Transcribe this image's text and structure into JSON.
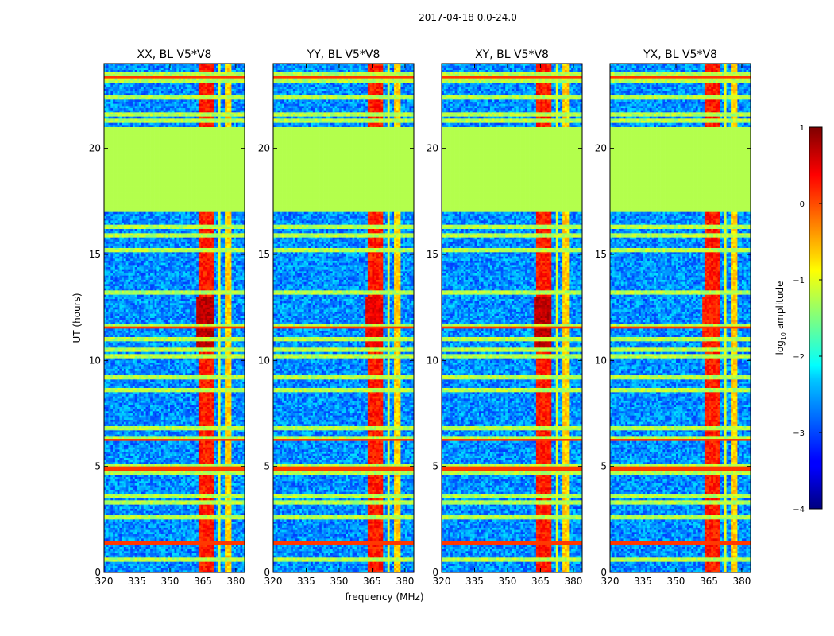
{
  "suptitle": "2017-04-18 0.0-24.0",
  "chart_data": {
    "type": "heatmap",
    "title": "2017-04-18 0.0-24.0",
    "xlabel": "frequency (MHz)",
    "ylabel": "UT (hours)",
    "x_ticks": [
      320,
      335,
      350,
      365,
      380
    ],
    "y_ticks": [
      0,
      5,
      10,
      15,
      20
    ],
    "xlim": [
      320,
      384
    ],
    "ylim": [
      0,
      24
    ],
    "panels": [
      {
        "title": "XX, BL V5*V8",
        "rfi_peak": 0.9
      },
      {
        "title": "YY, BL V5*V8",
        "rfi_peak": 0.85
      },
      {
        "title": "XY, BL V5*V8",
        "rfi_peak": 0.9
      },
      {
        "title": "YX, BL V5*V8",
        "rfi_peak": 0.8
      }
    ],
    "gap_ut": [
      17.0,
      21.0
    ],
    "flagged_value": -1.25,
    "colorbar": {
      "label": "log10 amplitude",
      "colormap": "jet",
      "range": [
        -4,
        1
      ],
      "ticks": [
        "1",
        "0",
        "−1",
        "−2",
        "−3",
        "−4"
      ]
    }
  }
}
